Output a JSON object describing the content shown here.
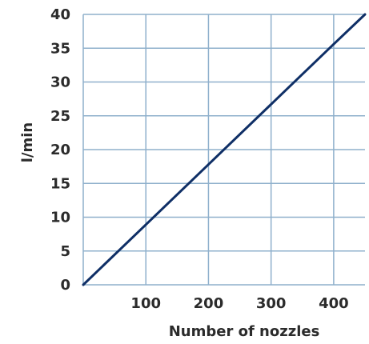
{
  "chart_data": {
    "type": "line",
    "xlabel": "Number of nozzles",
    "ylabel": "l/min",
    "xlim": [
      0,
      450
    ],
    "ylim": [
      0,
      40
    ],
    "grid": true,
    "x_ticks": [
      {
        "value": 100,
        "label": "100"
      },
      {
        "value": 200,
        "label": "200"
      },
      {
        "value": 300,
        "label": "300"
      },
      {
        "value": 400,
        "label": "400"
      }
    ],
    "y_ticks": [
      {
        "value": 0,
        "label": "0"
      },
      {
        "value": 5,
        "label": "5"
      },
      {
        "value": 10,
        "label": "10"
      },
      {
        "value": 15,
        "label": "15"
      },
      {
        "value": 20,
        "label": "20"
      },
      {
        "value": 25,
        "label": "25"
      },
      {
        "value": 30,
        "label": "30"
      },
      {
        "value": 35,
        "label": "35"
      },
      {
        "value": 40,
        "label": "40"
      }
    ],
    "series": [
      {
        "x": [
          0,
          100,
          200,
          300,
          400,
          450
        ],
        "y": [
          0,
          8.9,
          17.8,
          26.7,
          35.6,
          40
        ],
        "color": "#0f2f66"
      }
    ],
    "colors": {
      "grid": "#8fb0cc",
      "line": "#0f2f66",
      "text": "#2b2b2b"
    }
  }
}
